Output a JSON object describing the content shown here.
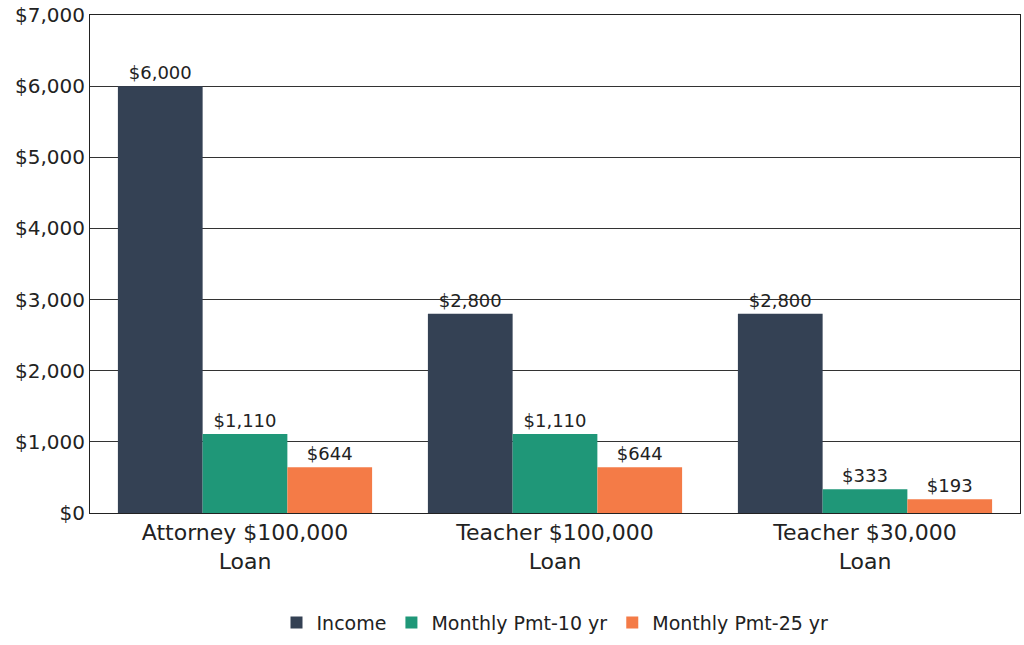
{
  "chart_data": {
    "type": "bar",
    "categories": [
      "Attorney $100,000 Loan",
      "Teacher $100,000 Loan",
      "Teacher $30,000 Loan"
    ],
    "series": [
      {
        "name": "Income",
        "color": "#344154",
        "values": [
          6000,
          2800,
          2800
        ],
        "value_labels": [
          "$6,000",
          "$2,800",
          "$2,800"
        ]
      },
      {
        "name": "Monthly Pmt-10 yr",
        "color": "#1f9778",
        "values": [
          1110,
          1110,
          333
        ],
        "value_labels": [
          "$1,110",
          "$1,110",
          "$333"
        ]
      },
      {
        "name": "Monthly Pmt-25 yr",
        "color": "#f47b47",
        "values": [
          644,
          644,
          193
        ],
        "value_labels": [
          "$644",
          "$644",
          "$193"
        ]
      }
    ],
    "ylim": [
      0,
      7000
    ],
    "yticks": [
      {
        "value": 0,
        "label": "$0"
      },
      {
        "value": 1000,
        "label": "$1,000"
      },
      {
        "value": 2000,
        "label": "$2,000"
      },
      {
        "value": 3000,
        "label": "$3,000"
      },
      {
        "value": 4000,
        "label": "$4,000"
      },
      {
        "value": 5000,
        "label": "$5,000"
      },
      {
        "value": 6000,
        "label": "$6,000"
      },
      {
        "value": 7000,
        "label": "$7,000"
      }
    ],
    "grid": true,
    "legend": "bottom",
    "data_labels": true
  }
}
